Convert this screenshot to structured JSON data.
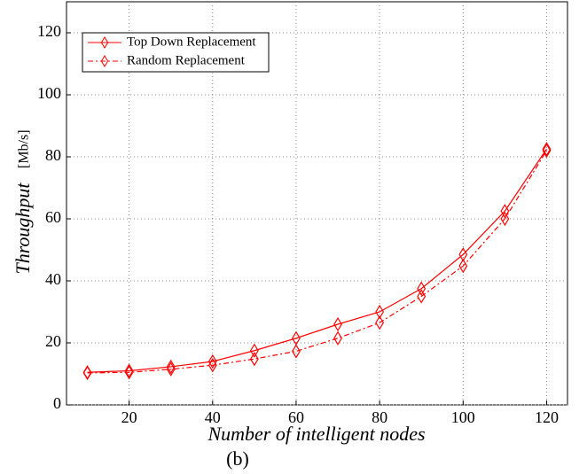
{
  "chart_data": {
    "type": "line",
    "xlabel": "Number of intelligent nodes",
    "ylabel": "Throughput",
    "ylabel_unit": "[Mb/s]",
    "caption": "(b)",
    "x": [
      10,
      20,
      30,
      40,
      50,
      60,
      70,
      80,
      90,
      100,
      110,
      120
    ],
    "series": [
      {
        "name": "Top Down Replacement",
        "color": "#ff0000",
        "dash": "solid",
        "values": [
          10.5,
          11,
          12.3,
          14,
          17.5,
          21.5,
          26,
          30,
          37.5,
          48.5,
          62.5,
          82.5
        ]
      },
      {
        "name": "Random Replacement",
        "color": "#ff0000",
        "dash": "dashdot",
        "values": [
          10.3,
          10.5,
          11.5,
          12.8,
          14.8,
          17.3,
          21.5,
          26.5,
          35,
          44.8,
          60,
          82
        ]
      }
    ],
    "xlim": [
      5,
      125
    ],
    "xticks": [
      20,
      40,
      60,
      80,
      100,
      120
    ],
    "ylim": [
      0,
      130
    ],
    "yticks": [
      0,
      20,
      40,
      60,
      80,
      100,
      120
    ],
    "grid": true,
    "legend": "upper left"
  }
}
